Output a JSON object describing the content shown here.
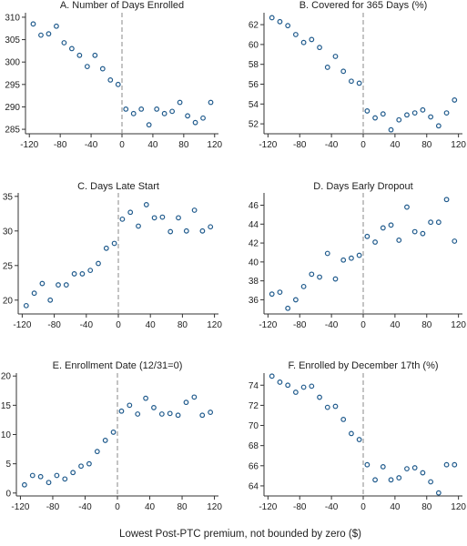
{
  "figure": {
    "xlabel": "Lowest Post-PTC premium, not bounded by zero ($)"
  },
  "chart_data": [
    {
      "type": "scatter",
      "title": "A. Number of Days Enrolled",
      "xlim": [
        -125,
        125
      ],
      "ylim": [
        284,
        311
      ],
      "xticks": [
        -120,
        -80,
        -40,
        0,
        40,
        80,
        120
      ],
      "yticks": [
        285,
        290,
        295,
        300,
        305,
        310
      ],
      "cutoff": 0,
      "x": [
        -115,
        -105,
        -95,
        -85,
        -75,
        -65,
        -55,
        -45,
        -35,
        -25,
        -15,
        -5,
        5,
        15,
        25,
        35,
        45,
        55,
        65,
        75,
        85,
        95,
        105,
        115
      ],
      "y": [
        308.5,
        306.0,
        306.3,
        308.0,
        304.3,
        303.0,
        301.5,
        299.0,
        301.5,
        298.5,
        296.0,
        295.0,
        289.5,
        288.5,
        289.5,
        286.0,
        289.5,
        288.5,
        289.0,
        291.0,
        288.0,
        286.5,
        287.5,
        291.0
      ]
    },
    {
      "type": "scatter",
      "title": "B. Covered for 365 Days (%)",
      "xlim": [
        -125,
        125
      ],
      "ylim": [
        51,
        63.2
      ],
      "xticks": [
        -120,
        -80,
        -40,
        0,
        40,
        80,
        120
      ],
      "yticks": [
        52,
        54,
        56,
        58,
        60,
        62
      ],
      "cutoff": 0,
      "x": [
        -115,
        -105,
        -95,
        -85,
        -75,
        -65,
        -55,
        -45,
        -35,
        -25,
        -15,
        -5,
        5,
        15,
        25,
        35,
        45,
        55,
        65,
        75,
        85,
        95,
        105,
        115
      ],
      "y": [
        62.7,
        62.3,
        61.9,
        61.0,
        60.2,
        60.5,
        59.7,
        57.7,
        58.8,
        57.3,
        56.3,
        56.1,
        53.3,
        52.6,
        53.0,
        51.4,
        52.4,
        52.9,
        53.1,
        53.4,
        52.7,
        51.8,
        53.1,
        54.4
      ]
    },
    {
      "type": "scatter",
      "title": "C. Days Late Start",
      "xlim": [
        -125,
        125
      ],
      "ylim": [
        18,
        35.5
      ],
      "xticks": [
        -120,
        -80,
        -40,
        0,
        40,
        80,
        120
      ],
      "yticks": [
        20,
        25,
        30,
        35
      ],
      "cutoff": 0,
      "x": [
        -115,
        -105,
        -95,
        -85,
        -75,
        -65,
        -55,
        -45,
        -35,
        -25,
        -15,
        -5,
        5,
        15,
        25,
        35,
        45,
        55,
        65,
        75,
        85,
        95,
        105,
        115
      ],
      "y": [
        19.2,
        21.0,
        22.4,
        20.0,
        22.2,
        22.2,
        23.8,
        23.8,
        24.3,
        25.3,
        27.5,
        28.2,
        31.7,
        32.7,
        30.7,
        33.8,
        31.9,
        32.0,
        29.9,
        31.9,
        30.0,
        33.0,
        30.0,
        30.6
      ]
    },
    {
      "type": "scatter",
      "title": "D. Days Early Dropout",
      "xlim": [
        -125,
        125
      ],
      "ylim": [
        34.5,
        47.3
      ],
      "xticks": [
        -120,
        -80,
        -40,
        0,
        40,
        80,
        120
      ],
      "yticks": [
        36,
        38,
        40,
        42,
        44,
        46
      ],
      "cutoff": 0,
      "x": [
        -115,
        -105,
        -95,
        -85,
        -75,
        -65,
        -55,
        -45,
        -35,
        -25,
        -15,
        -5,
        5,
        15,
        25,
        35,
        45,
        55,
        65,
        75,
        85,
        95,
        105,
        115
      ],
      "y": [
        36.6,
        36.8,
        35.1,
        36.0,
        37.4,
        38.7,
        38.4,
        40.9,
        38.2,
        40.2,
        40.4,
        40.7,
        42.7,
        42.1,
        43.6,
        43.9,
        42.3,
        45.8,
        43.2,
        43.0,
        44.2,
        44.2,
        46.6,
        42.2
      ]
    },
    {
      "type": "scatter",
      "title": "E. Enrollment Date (12/31=0)",
      "xlim": [
        -125,
        125
      ],
      "ylim": [
        -0.5,
        20.5
      ],
      "xticks": [
        -120,
        -80,
        -40,
        0,
        40,
        80,
        120
      ],
      "yticks": [
        0,
        5,
        10,
        15,
        20
      ],
      "cutoff": 0,
      "x": [
        -115,
        -105,
        -95,
        -85,
        -75,
        -65,
        -55,
        -45,
        -35,
        -25,
        -15,
        -5,
        5,
        15,
        25,
        35,
        45,
        55,
        65,
        75,
        85,
        95,
        105,
        115
      ],
      "y": [
        1.4,
        3.0,
        2.8,
        1.8,
        3.0,
        2.4,
        3.5,
        4.6,
        5.0,
        7.1,
        9.0,
        10.4,
        14.0,
        15.0,
        13.5,
        16.2,
        14.6,
        13.5,
        13.6,
        13.3,
        15.5,
        16.4,
        13.3,
        13.8
      ]
    },
    {
      "type": "scatter",
      "title": "F. Enrolled by December 17th (%)",
      "xlim": [
        -125,
        125
      ],
      "ylim": [
        63,
        75.2
      ],
      "xticks": [
        -120,
        -80,
        -40,
        0,
        40,
        80,
        120
      ],
      "yticks": [
        64,
        66,
        68,
        70,
        72,
        74
      ],
      "cutoff": 0,
      "x": [
        -115,
        -105,
        -95,
        -85,
        -75,
        -65,
        -55,
        -45,
        -35,
        -25,
        -15,
        -5,
        5,
        15,
        25,
        35,
        45,
        55,
        65,
        75,
        85,
        95,
        105,
        115
      ],
      "y": [
        74.9,
        74.3,
        74.0,
        73.3,
        73.8,
        73.9,
        72.8,
        71.8,
        71.9,
        70.6,
        69.2,
        68.6,
        66.1,
        64.6,
        65.9,
        64.6,
        64.8,
        65.7,
        65.8,
        65.3,
        64.4,
        63.3,
        66.1,
        66.1
      ]
    }
  ]
}
